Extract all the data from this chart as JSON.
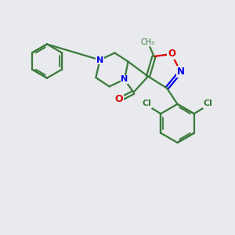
{
  "background_color": "#e8eaed",
  "bond_color": "#3a7a3a",
  "nitrogen_color": "#0000ee",
  "oxygen_color": "#dd0000",
  "chlorine_color": "#3a7a3a",
  "line_width": 1.6,
  "fig_width": 3.0,
  "fig_height": 3.0,
  "dpi": 100,
  "xlim": [
    0,
    10
  ],
  "ylim": [
    0,
    10
  ]
}
